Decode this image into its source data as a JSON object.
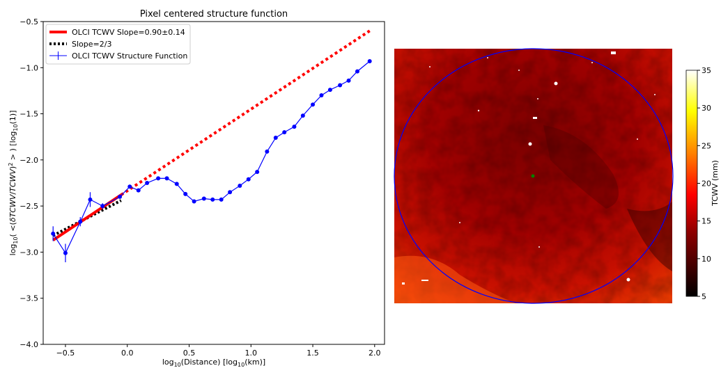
{
  "chart_data": [
    {
      "type": "line",
      "title": "Pixel centered structure function",
      "xlabel_main": "log",
      "xlabel_sub": "10",
      "xlabel_rest": "(Distance) [log",
      "xlabel_sub2": "10",
      "xlabel_end": "(km)]",
      "ylabel": "log10( <(δTCWV/TCWV)²> ) [log10(1)]",
      "xlim": [
        -0.68,
        2.08
      ],
      "ylim": [
        -4.0,
        -0.5
      ],
      "xticks": [
        -0.5,
        0.0,
        0.5,
        1.0,
        1.5,
        2.0
      ],
      "xtick_labels": [
        "−0.5",
        "0.0",
        "0.5",
        "1.0",
        "1.5",
        "2.0"
      ],
      "yticks": [
        -4.0,
        -3.5,
        -3.0,
        -2.5,
        -2.0,
        -1.5,
        -1.0,
        -0.5
      ],
      "ytick_labels": [
        "−4.0",
        "−3.5",
        "−3.0",
        "−2.5",
        "−2.0",
        "−1.5",
        "−1.0",
        "−0.5"
      ],
      "legend_position": "top-left",
      "series": [
        {
          "name": "OLCI TCWV Slope=0.90±0.14",
          "style": "fit-line",
          "color": "#ff0000",
          "x": [
            -0.6,
            -0.05
          ],
          "y": [
            -2.87,
            -2.38
          ]
        },
        {
          "name": "",
          "style": "fit-extension-dotted",
          "color": "#ff0000",
          "x": [
            -0.05,
            1.96
          ],
          "y": [
            -2.38,
            -0.6
          ]
        },
        {
          "name": "Slope=2/3",
          "style": "dotted",
          "color": "#000000",
          "x": [
            -0.6,
            -0.05
          ],
          "y": [
            -2.82,
            -2.44
          ]
        },
        {
          "name": "OLCI TCWV Structure Function",
          "style": "line-markers-errorbars",
          "color": "#0000ff",
          "x": [
            -0.6,
            -0.5,
            -0.38,
            -0.3,
            -0.2,
            -0.06,
            0.02,
            0.09,
            0.16,
            0.25,
            0.32,
            0.4,
            0.47,
            0.54,
            0.62,
            0.69,
            0.76,
            0.83,
            0.91,
            0.98,
            1.05,
            1.13,
            1.2,
            1.27,
            1.35,
            1.42,
            1.5,
            1.57,
            1.64,
            1.72,
            1.79,
            1.86,
            1.96
          ],
          "y": [
            -2.8,
            -3.01,
            -2.67,
            -2.43,
            -2.5,
            -2.4,
            -2.29,
            -2.33,
            -2.25,
            -2.2,
            -2.2,
            -2.26,
            -2.37,
            -2.45,
            -2.42,
            -2.43,
            -2.43,
            -2.35,
            -2.28,
            -2.21,
            -2.13,
            -1.91,
            -1.76,
            -1.7,
            -1.64,
            -1.52,
            -1.4,
            -1.3,
            -1.24,
            -1.19,
            -1.14,
            -1.04,
            -0.93
          ],
          "yerr": [
            0.08,
            0.1,
            0.05,
            0.08,
            0.03,
            0.02,
            0.02,
            0.01,
            0.01,
            0.01,
            0.01,
            0.01,
            0.01,
            0.01,
            0.01,
            0.01,
            0.01,
            0.01,
            0.01,
            0.01,
            0.01,
            0.01,
            0.01,
            0.01,
            0.01,
            0.01,
            0.01,
            0.01,
            0.01,
            0.01,
            0.01,
            0.01,
            0.01
          ]
        }
      ]
    },
    {
      "type": "heatmap",
      "colorbar_label": "TCWV (mm)",
      "colorbar_range": [
        5,
        35
      ],
      "colorbar_ticks": [
        5,
        10,
        15,
        20,
        25,
        30,
        35
      ],
      "colormap": "hot",
      "circle_color": "#0000ff",
      "center_marker_color": "#008000"
    }
  ]
}
